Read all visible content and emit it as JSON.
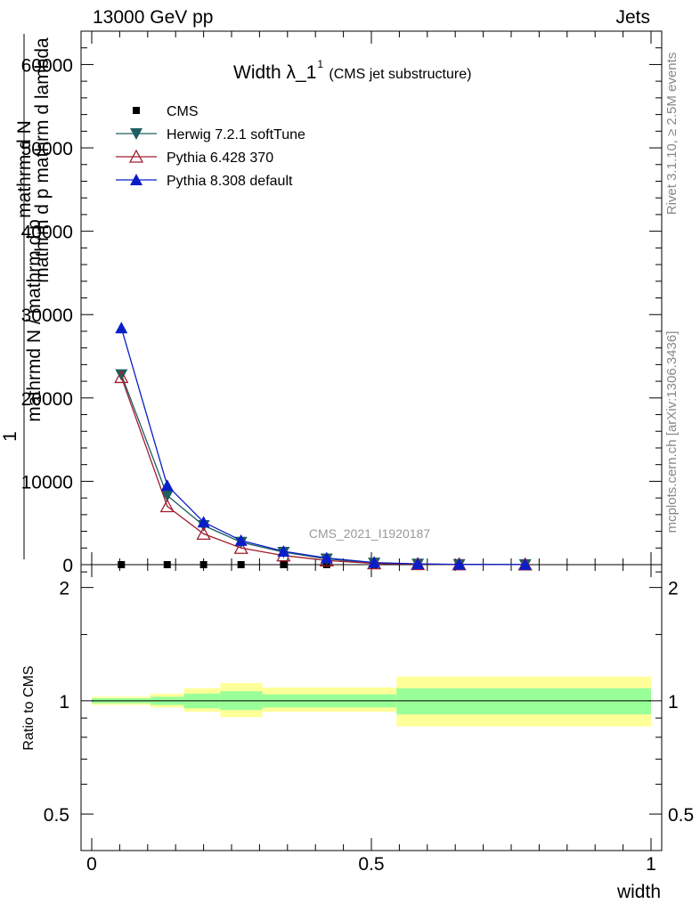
{
  "header": {
    "left": "13000 GeV pp",
    "right": "Jets"
  },
  "chart_data": {
    "type": "line",
    "title": "Width λ_1",
    "title_superscript": "1",
    "subtitle": "(CMS jet substructure)",
    "xlabel": "width",
    "ylabel_main_parts": [
      "1",
      "mathrmd N / mathrm d p",
      "mathrm d",
      "N",
      "mathrm d",
      "p",
      "mathrm d lambda"
    ],
    "ylabel_ratio": "Ratio to CMS",
    "watermark": "CMS_2021_I1920187",
    "side_label_top": "Rivet 3.1.10, ≥ 2.5M events",
    "side_label_bottom": "mcplots.cern.ch [arXiv:1306.3436]",
    "xlim": [
      0,
      1
    ],
    "ylim": [
      0,
      64000
    ],
    "ratio_ylim": [
      0.4,
      2.3
    ],
    "x_ticks": [
      0,
      0.5,
      1
    ],
    "x_tick_labels": [
      "0",
      "0.5",
      "1"
    ],
    "y_ticks": [
      0,
      10000,
      20000,
      30000,
      40000,
      50000,
      60000
    ],
    "y_tick_labels": [
      "0",
      "10000",
      "20000",
      "30000",
      "40000",
      "50000",
      "60000"
    ],
    "ratio_ticks": [
      0.5,
      1,
      2
    ],
    "ratio_tick_labels": [
      "0.5",
      "1",
      "2"
    ],
    "x_bin_centers": [
      0.053,
      0.135,
      0.2,
      0.267,
      0.343,
      0.42,
      0.505,
      0.583,
      0.657,
      0.775
    ],
    "series": [
      {
        "name": "CMS",
        "color": "#000000",
        "marker": "square",
        "values": [
          0,
          0,
          0,
          0,
          0,
          0,
          0,
          0,
          0,
          0
        ]
      },
      {
        "name": "Herwig 7.2.1 softTune",
        "color": "#1e5f60",
        "marker": "triangle-down",
        "values": [
          22800,
          8300,
          4700,
          2700,
          1500,
          700,
          200,
          80,
          30,
          10
        ]
      },
      {
        "name": "Pythia 6.428 370",
        "color": "#a01c2e",
        "marker": "triangle-up-open",
        "values": [
          22500,
          7000,
          3700,
          2000,
          1100,
          500,
          150,
          60,
          25,
          10
        ]
      },
      {
        "name": "Pythia 8.308 default",
        "color": "#0a1ec8",
        "marker": "triangle-up",
        "values": [
          28400,
          9500,
          5100,
          2900,
          1600,
          800,
          250,
          90,
          35,
          12
        ]
      }
    ],
    "ratio_band_edges": [
      0,
      0.105,
      0.165,
      0.23,
      0.305,
      0.545,
      1.0
    ],
    "ratio_band_inner": [
      [
        0.985,
        1.015
      ],
      [
        0.975,
        1.025
      ],
      [
        0.955,
        1.045
      ],
      [
        0.945,
        1.06
      ],
      [
        0.96,
        1.04
      ],
      [
        0.92,
        1.08
      ]
    ],
    "ratio_band_outer": [
      [
        0.975,
        1.025
      ],
      [
        0.96,
        1.045
      ],
      [
        0.935,
        1.08
      ],
      [
        0.905,
        1.115
      ],
      [
        0.935,
        1.085
      ],
      [
        0.855,
        1.16
      ]
    ],
    "colors": {
      "inner_band": "#99ff99",
      "outer_band": "#ffff99"
    }
  }
}
